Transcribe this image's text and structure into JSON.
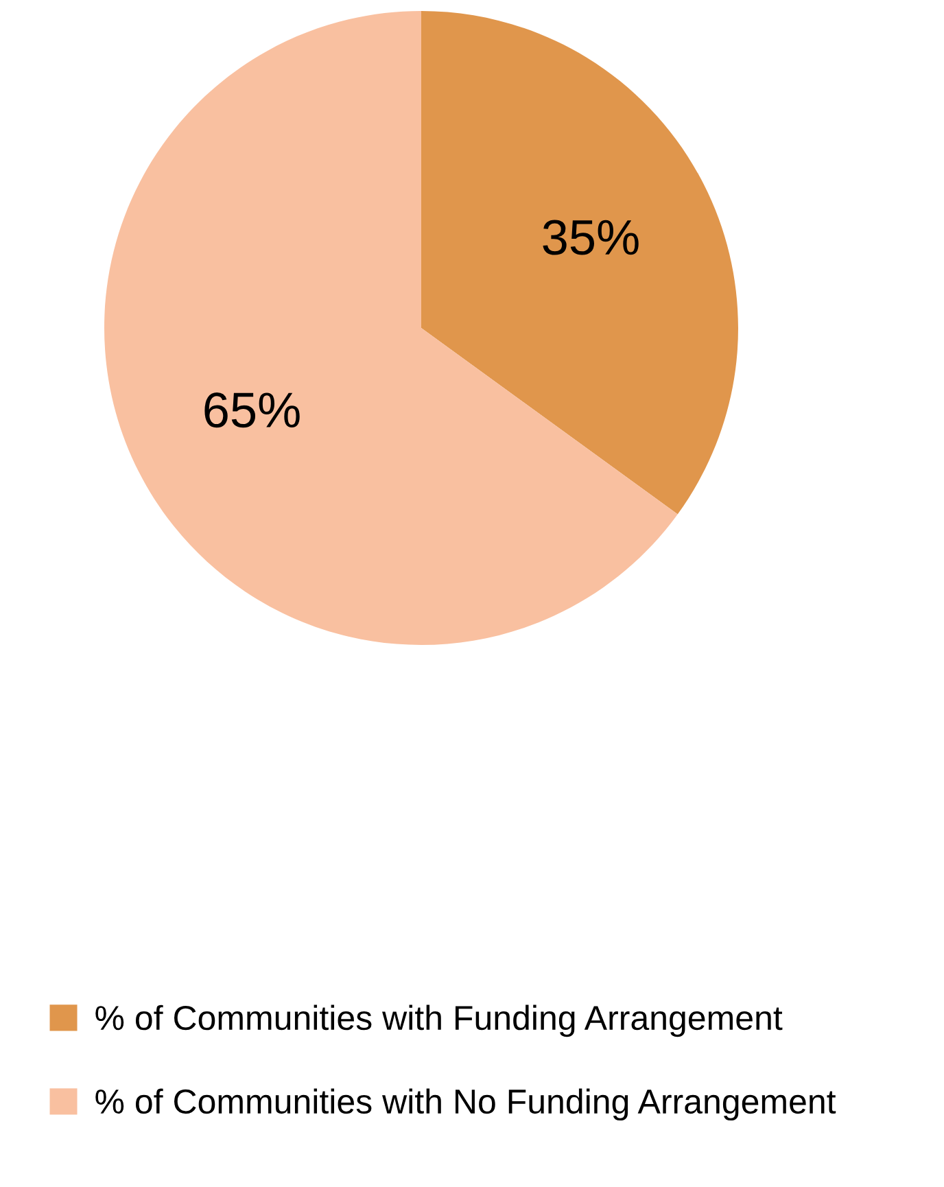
{
  "chart_data": {
    "type": "pie",
    "categories": [
      "% of Communities with Funding Arrangement",
      "% of Communities with No Funding Arrangement"
    ],
    "values": [
      35,
      65
    ],
    "colors": [
      "#e0964c",
      "#f9c0a0"
    ],
    "value_labels": [
      "35%",
      "65%"
    ],
    "legend": "bottom"
  }
}
